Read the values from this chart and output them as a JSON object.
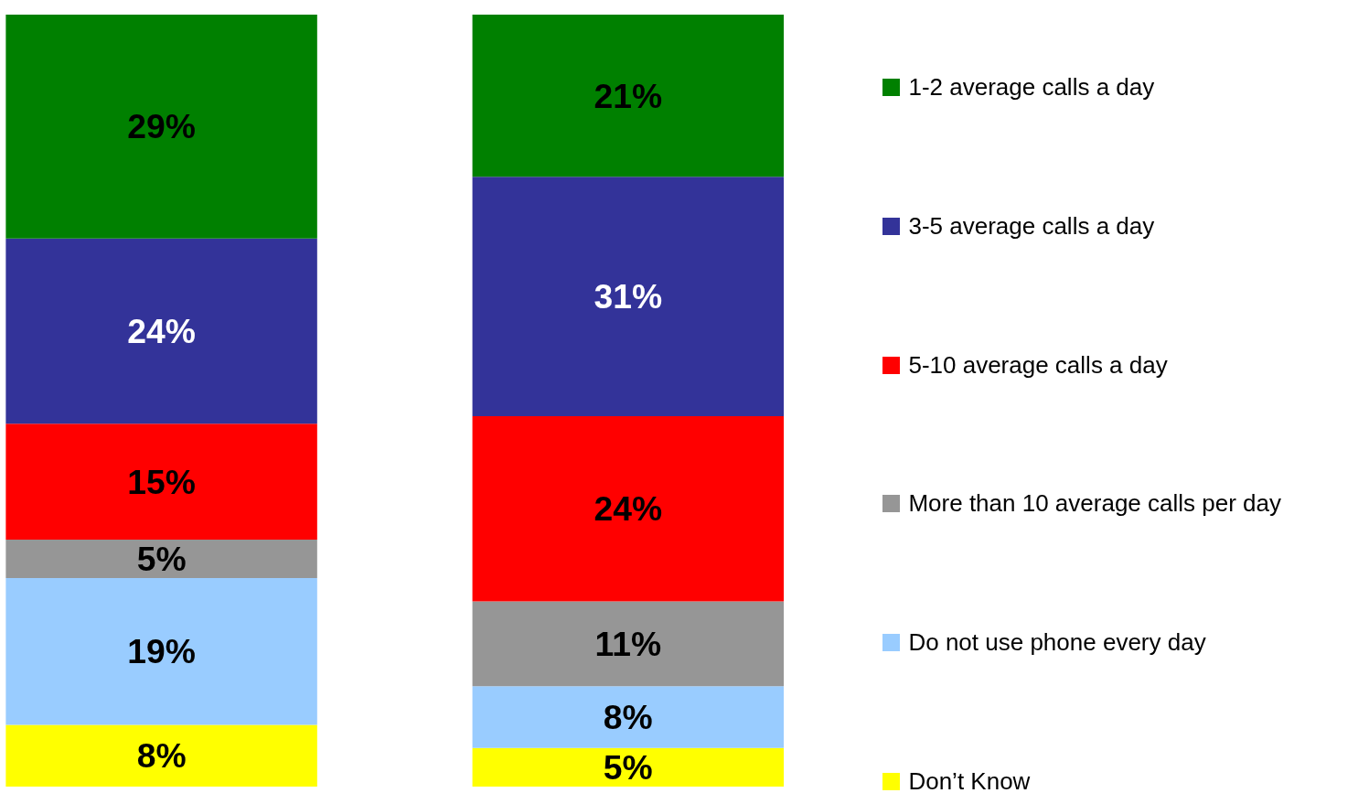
{
  "chart_data": {
    "type": "bar",
    "stacked": true,
    "categories": [
      null,
      null
    ],
    "legend": "right",
    "series": [
      {
        "name": "Don’t Know",
        "color": "#ffff00",
        "values": [
          8,
          5
        ],
        "value_labels": [
          "8%",
          "5%"
        ]
      },
      {
        "name": "Do not use phone every day",
        "color": "#99ccff",
        "values": [
          19,
          8
        ],
        "value_labels": [
          "19%",
          "8%"
        ]
      },
      {
        "name": "More than 10 average calls per day",
        "color": "#969696",
        "values": [
          5,
          11
        ],
        "value_labels": [
          "5%",
          "11%"
        ]
      },
      {
        "name": "5-10 average calls a day",
        "color": "#ff0000",
        "values": [
          15,
          24
        ],
        "value_labels": [
          "15%",
          "24%"
        ]
      },
      {
        "name": "3-5 average calls a day",
        "color": "#333399",
        "values": [
          24,
          31
        ],
        "value_labels": [
          "24%",
          "31%"
        ]
      },
      {
        "name": "1-2 average calls a day",
        "color": "#008000",
        "values": [
          29,
          21
        ],
        "value_labels": [
          "29%",
          "21%"
        ]
      }
    ]
  }
}
